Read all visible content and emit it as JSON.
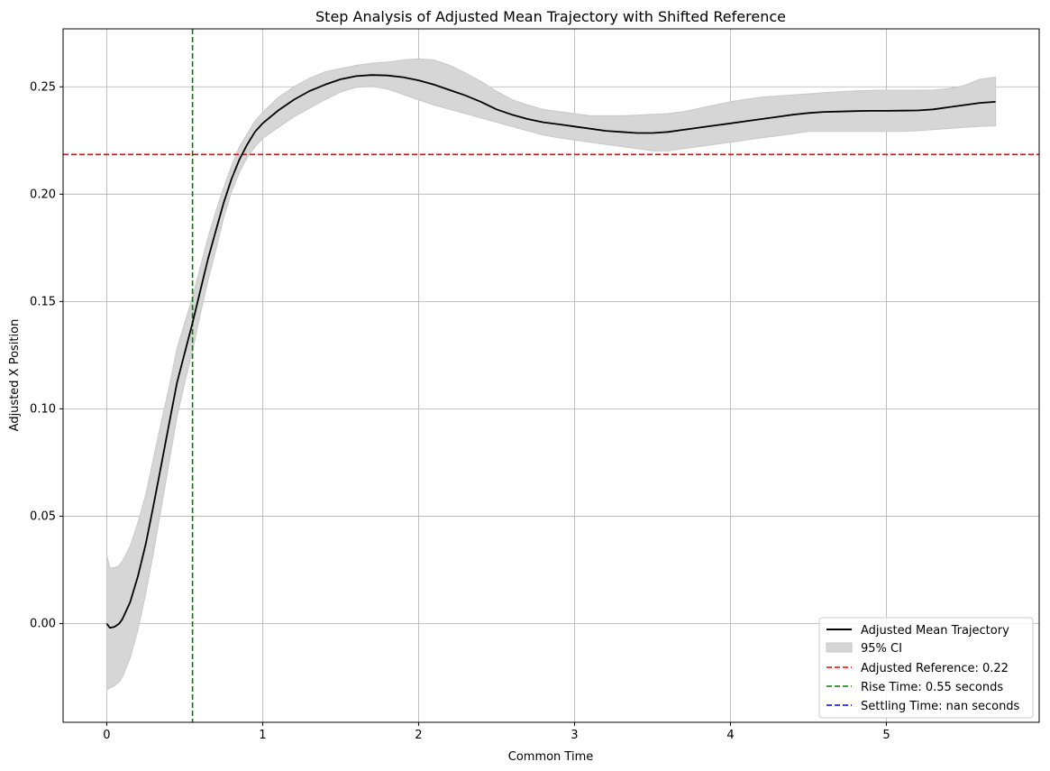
{
  "chart_data": {
    "type": "line",
    "title": "Step Analysis of Adjusted Mean Trajectory with Shifted Reference",
    "xlabel": "Common Time",
    "ylabel": "Adjusted X Position",
    "xlim": [
      -0.28,
      5.98
    ],
    "ylim": [
      -0.046,
      0.277
    ],
    "x_ticks": [
      0,
      1,
      2,
      3,
      4,
      5
    ],
    "x_tick_labels": [
      "0",
      "1",
      "2",
      "3",
      "4",
      "5"
    ],
    "y_ticks": [
      0.0,
      0.05,
      0.1,
      0.15,
      0.2,
      0.25
    ],
    "y_tick_labels": [
      "0.00",
      "0.05",
      "0.10",
      "0.15",
      "0.20",
      "0.25"
    ],
    "grid": true,
    "legend_position": "lower-right",
    "series": [
      {
        "name": "Adjusted Mean Trajectory",
        "color": "#000000",
        "x": [
          0.0,
          0.02,
          0.05,
          0.08,
          0.1,
          0.15,
          0.2,
          0.25,
          0.3,
          0.35,
          0.4,
          0.45,
          0.5,
          0.55,
          0.6,
          0.65,
          0.7,
          0.75,
          0.8,
          0.85,
          0.9,
          0.95,
          1.0,
          1.1,
          1.2,
          1.3,
          1.4,
          1.5,
          1.6,
          1.7,
          1.8,
          1.9,
          2.0,
          2.1,
          2.2,
          2.3,
          2.4,
          2.5,
          2.6,
          2.7,
          2.8,
          2.9,
          3.0,
          3.1,
          3.2,
          3.3,
          3.4,
          3.5,
          3.6,
          3.7,
          3.8,
          3.9,
          4.0,
          4.1,
          4.2,
          4.3,
          4.4,
          4.5,
          4.6,
          4.7,
          4.8,
          4.9,
          5.0,
          5.1,
          5.2,
          5.3,
          5.4,
          5.5,
          5.6,
          5.7
        ],
        "values": [
          0.0,
          -0.002,
          -0.0015,
          0.0,
          0.002,
          0.01,
          0.022,
          0.037,
          0.055,
          0.074,
          0.093,
          0.112,
          0.126,
          0.14,
          0.155,
          0.17,
          0.183,
          0.196,
          0.207,
          0.216,
          0.223,
          0.229,
          0.233,
          0.239,
          0.244,
          0.248,
          0.251,
          0.2535,
          0.255,
          0.2555,
          0.2553,
          0.2545,
          0.253,
          0.251,
          0.2485,
          0.246,
          0.243,
          0.2395,
          0.237,
          0.235,
          0.2335,
          0.2325,
          0.2315,
          0.2305,
          0.2295,
          0.229,
          0.2285,
          0.2285,
          0.229,
          0.23,
          0.231,
          0.232,
          0.233,
          0.234,
          0.235,
          0.236,
          0.237,
          0.2378,
          0.2383,
          0.2385,
          0.2387,
          0.2388,
          0.2388,
          0.2389,
          0.239,
          0.2395,
          0.2405,
          0.2415,
          0.2425,
          0.243
        ]
      }
    ],
    "ci": {
      "name": "95% CI",
      "color": "#d6d6d6",
      "x": [
        0.0,
        0.02,
        0.05,
        0.08,
        0.1,
        0.15,
        0.2,
        0.25,
        0.3,
        0.35,
        0.4,
        0.45,
        0.5,
        0.55,
        0.6,
        0.65,
        0.7,
        0.75,
        0.8,
        0.85,
        0.9,
        0.95,
        1.0,
        1.1,
        1.2,
        1.3,
        1.4,
        1.5,
        1.6,
        1.7,
        1.8,
        1.9,
        2.0,
        2.1,
        2.2,
        2.3,
        2.4,
        2.5,
        2.6,
        2.7,
        2.8,
        2.9,
        3.0,
        3.1,
        3.2,
        3.3,
        3.4,
        3.5,
        3.6,
        3.7,
        3.8,
        3.9,
        4.0,
        4.1,
        4.2,
        4.3,
        4.4,
        4.5,
        4.6,
        4.7,
        4.8,
        4.9,
        5.0,
        5.1,
        5.2,
        5.3,
        5.4,
        5.5,
        5.6,
        5.7
      ],
      "upper": [
        0.032,
        0.026,
        0.026,
        0.027,
        0.029,
        0.036,
        0.047,
        0.06,
        0.077,
        0.094,
        0.11,
        0.128,
        0.14,
        0.152,
        0.166,
        0.18,
        0.192,
        0.203,
        0.213,
        0.222,
        0.228,
        0.234,
        0.238,
        0.245,
        0.25,
        0.254,
        0.257,
        0.2585,
        0.26,
        0.261,
        0.2615,
        0.2625,
        0.263,
        0.2625,
        0.26,
        0.2565,
        0.2525,
        0.248,
        0.244,
        0.2415,
        0.2395,
        0.2385,
        0.2375,
        0.2365,
        0.2365,
        0.2365,
        0.2368,
        0.2372,
        0.2375,
        0.2385,
        0.24,
        0.2415,
        0.243,
        0.2442,
        0.2452,
        0.2457,
        0.2462,
        0.2467,
        0.2473,
        0.2477,
        0.2481,
        0.2483,
        0.2484,
        0.2484,
        0.2484,
        0.2485,
        0.2492,
        0.2506,
        0.2535,
        0.2545
      ]
    },
    "ci_lower": [
      -0.031,
      -0.03,
      -0.029,
      -0.027,
      -0.025,
      -0.016,
      -0.003,
      0.014,
      0.033,
      0.054,
      0.075,
      0.096,
      0.112,
      0.127,
      0.144,
      0.16,
      0.174,
      0.189,
      0.201,
      0.21,
      0.217,
      0.222,
      0.226,
      0.231,
      0.236,
      0.24,
      0.244,
      0.2475,
      0.2498,
      0.2502,
      0.249,
      0.2465,
      0.244,
      0.2415,
      0.2395,
      0.2375,
      0.2355,
      0.2335,
      0.2315,
      0.2295,
      0.2275,
      0.2262,
      0.2252,
      0.2242,
      0.2232,
      0.2222,
      0.2212,
      0.2202,
      0.2202,
      0.2212,
      0.2222,
      0.2232,
      0.2242,
      0.2252,
      0.2262,
      0.2272,
      0.2282,
      0.2292,
      0.2292,
      0.2292,
      0.2292,
      0.2292,
      0.2292,
      0.2292,
      0.2296,
      0.2301,
      0.2306,
      0.2311,
      0.2316,
      0.2318
    ],
    "reference": {
      "name": "Adjusted Reference: 0.22",
      "value": 0.2185,
      "color": "#ff0000"
    },
    "rise_time": {
      "name": "Rise Time: 0.55 seconds",
      "value": 0.55,
      "color": "#008000"
    },
    "settling_time": {
      "name": "Settling Time: nan seconds",
      "color": "#0000ff"
    }
  }
}
